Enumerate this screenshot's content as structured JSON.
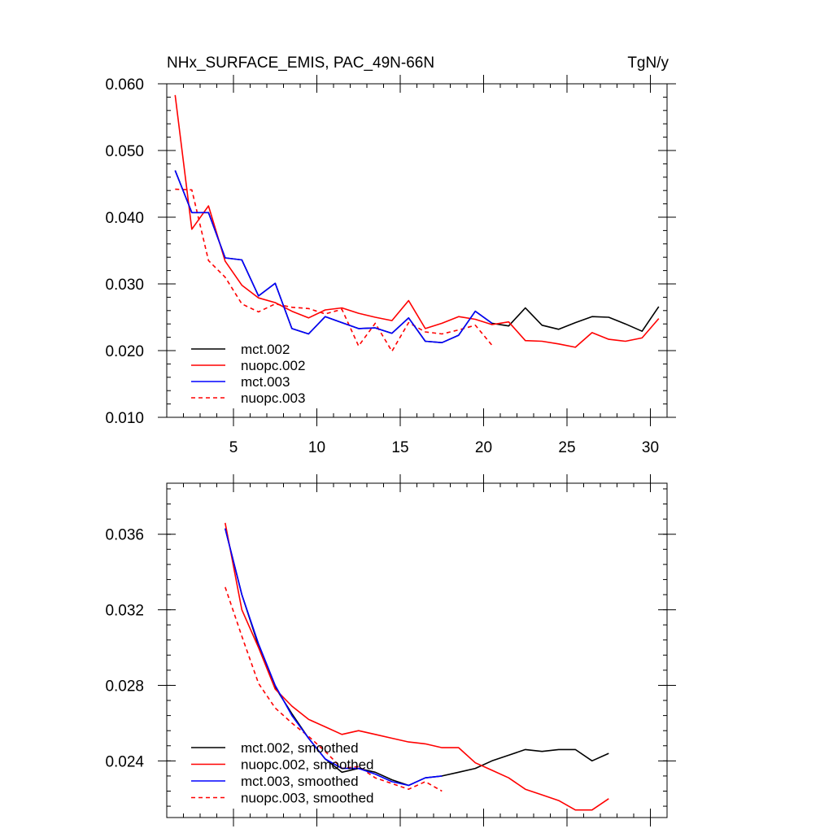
{
  "chart_data": [
    {
      "type": "line",
      "title": "NHx_SURFACE_EMIS, PAC_49N-66N",
      "units": "TgN/y",
      "xlim": [
        1,
        31
      ],
      "ylim": [
        0.01,
        0.06
      ],
      "xticks": [
        5,
        10,
        15,
        20,
        25,
        30
      ],
      "xtick_labels": [
        "5",
        "10",
        "15",
        "20",
        "25",
        "30"
      ],
      "yticks": [
        0.01,
        0.02,
        0.03,
        0.04,
        0.05,
        0.06
      ],
      "ytick_labels": [
        "0.010",
        "0.020",
        "0.030",
        "0.040",
        "0.050",
        "0.060"
      ],
      "legend_position": "bottom-left",
      "series": [
        {
          "name": "mct.002",
          "color": "#000000",
          "dash": "solid",
          "x": [
            1.5,
            2.5,
            3.5,
            4.5,
            5.5,
            6.5,
            7.5,
            8.5,
            9.5,
            10.5,
            11.5,
            12.5,
            13.5,
            14.5,
            15.5,
            16.5,
            17.5,
            18.5,
            19.5,
            20.5,
            21.5,
            22.5,
            23.5,
            24.5,
            25.5,
            26.5,
            27.5,
            28.5,
            29.5,
            30.5
          ],
          "values": [
            0.047,
            0.0407,
            0.0407,
            0.0339,
            0.0336,
            0.0282,
            0.0301,
            0.0233,
            0.0225,
            0.0251,
            0.0242,
            0.0233,
            0.0234,
            0.0226,
            0.0249,
            0.0214,
            0.0212,
            0.0223,
            0.0259,
            0.0241,
            0.0237,
            0.0264,
            0.0238,
            0.0232,
            0.0242,
            0.0251,
            0.025,
            0.024,
            0.0229,
            0.0266
          ]
        },
        {
          "name": "nuopc.002",
          "color": "#ff0000",
          "dash": "solid",
          "x": [
            1.5,
            2.5,
            3.5,
            4.5,
            5.5,
            6.5,
            7.5,
            8.5,
            9.5,
            10.5,
            11.5,
            12.5,
            13.5,
            14.5,
            15.5,
            16.5,
            17.5,
            18.5,
            19.5,
            20.5,
            21.5,
            22.5,
            23.5,
            24.5,
            25.5,
            26.5,
            27.5,
            28.5,
            29.5,
            30.5
          ],
          "values": [
            0.0583,
            0.0382,
            0.0417,
            0.0334,
            0.0298,
            0.0279,
            0.0272,
            0.0259,
            0.0249,
            0.0261,
            0.0264,
            0.0256,
            0.025,
            0.0245,
            0.0275,
            0.0233,
            0.0241,
            0.0251,
            0.0247,
            0.0239,
            0.0243,
            0.0215,
            0.0214,
            0.021,
            0.0205,
            0.0227,
            0.0217,
            0.0214,
            0.0219,
            0.0248
          ]
        },
        {
          "name": "mct.003",
          "color": "#0000ff",
          "dash": "solid",
          "x": [
            1.5,
            2.5,
            3.5,
            4.5,
            5.5,
            6.5,
            7.5,
            8.5,
            9.5,
            10.5,
            11.5,
            12.5,
            13.5,
            14.5,
            15.5,
            16.5,
            17.5,
            18.5,
            19.5,
            20.5
          ],
          "values": [
            0.047,
            0.0407,
            0.0407,
            0.0339,
            0.0336,
            0.0282,
            0.0301,
            0.0233,
            0.0225,
            0.0251,
            0.0242,
            0.0233,
            0.0234,
            0.0226,
            0.0249,
            0.0214,
            0.0212,
            0.0223,
            0.0259,
            0.0241
          ]
        },
        {
          "name": "nuopc.003",
          "color": "#ff0000",
          "dash": "dashed",
          "x": [
            1.5,
            2.5,
            3.5,
            4.5,
            5.5,
            6.5,
            7.5,
            8.5,
            9.5,
            10.5,
            11.5,
            12.5,
            13.5,
            14.5,
            15.5,
            16.5,
            17.5,
            18.5,
            19.5,
            20.5
          ],
          "values": [
            0.0442,
            0.0441,
            0.0335,
            0.031,
            0.027,
            0.0258,
            0.027,
            0.0265,
            0.0263,
            0.0255,
            0.0262,
            0.0207,
            0.0241,
            0.0199,
            0.0242,
            0.0228,
            0.0225,
            0.0231,
            0.0238,
            0.0208
          ]
        }
      ]
    },
    {
      "type": "line",
      "title": "",
      "xlim": [
        1,
        31
      ],
      "ylim": [
        0.021,
        0.0387
      ],
      "xticks": [
        5,
        10,
        15,
        20,
        25,
        30
      ],
      "yticks": [
        0.024,
        0.028,
        0.032,
        0.036
      ],
      "ytick_labels": [
        "0.024",
        "0.028",
        "0.032",
        "0.036"
      ],
      "legend_position": "bottom-left",
      "series": [
        {
          "name": "mct.002, smoothed",
          "color": "#000000",
          "dash": "solid",
          "x": [
            4.5,
            5.5,
            6.5,
            7.5,
            8.5,
            9.5,
            10.5,
            11.5,
            12.5,
            13.5,
            14.5,
            15.5,
            16.5,
            17.5,
            18.5,
            19.5,
            20.5,
            21.5,
            22.5,
            23.5,
            24.5,
            25.5,
            26.5,
            27.5
          ],
          "values": [
            0.0363,
            0.0328,
            0.0301,
            0.0279,
            0.0265,
            0.0252,
            0.0241,
            0.0234,
            0.0236,
            0.0234,
            0.023,
            0.0227,
            0.0231,
            0.0232,
            0.0234,
            0.0236,
            0.024,
            0.0243,
            0.0246,
            0.0245,
            0.0246,
            0.0246,
            0.024,
            0.0244
          ]
        },
        {
          "name": "nuopc.002, smoothed",
          "color": "#ff0000",
          "dash": "solid",
          "x": [
            4.5,
            5.5,
            6.5,
            7.5,
            8.5,
            9.5,
            10.5,
            11.5,
            12.5,
            13.5,
            14.5,
            15.5,
            16.5,
            17.5,
            18.5,
            19.5,
            20.5,
            21.5,
            22.5,
            23.5,
            24.5,
            25.5,
            26.5,
            27.5
          ],
          "values": [
            0.0366,
            0.032,
            0.03,
            0.0278,
            0.0269,
            0.0262,
            0.0258,
            0.0254,
            0.0256,
            0.0254,
            0.0252,
            0.025,
            0.0249,
            0.0247,
            0.0247,
            0.0239,
            0.0235,
            0.0231,
            0.0225,
            0.0222,
            0.0219,
            0.0214,
            0.0214,
            0.022
          ]
        },
        {
          "name": "mct.003, smoothed",
          "color": "#0000ff",
          "dash": "solid",
          "x": [
            4.5,
            5.5,
            6.5,
            7.5,
            8.5,
            9.5,
            10.5,
            11.5,
            12.5,
            13.5,
            14.5,
            15.5,
            16.5,
            17.5
          ],
          "values": [
            0.0363,
            0.0328,
            0.0302,
            0.028,
            0.0264,
            0.0252,
            0.0241,
            0.0236,
            0.0236,
            0.0233,
            0.0229,
            0.0227,
            0.0231,
            0.0232
          ]
        },
        {
          "name": "nuopc.003, smoothed",
          "color": "#ff0000",
          "dash": "dashed",
          "x": [
            4.5,
            5.5,
            6.5,
            7.5,
            8.5,
            9.5,
            10.5,
            11.5,
            12.5,
            13.5,
            14.5,
            15.5,
            16.5,
            17.5
          ],
          "values": [
            0.0332,
            0.0306,
            0.0281,
            0.0268,
            0.026,
            0.0253,
            0.0245,
            0.0236,
            0.0237,
            0.0231,
            0.0228,
            0.0225,
            0.0229,
            0.0224
          ]
        }
      ]
    }
  ]
}
